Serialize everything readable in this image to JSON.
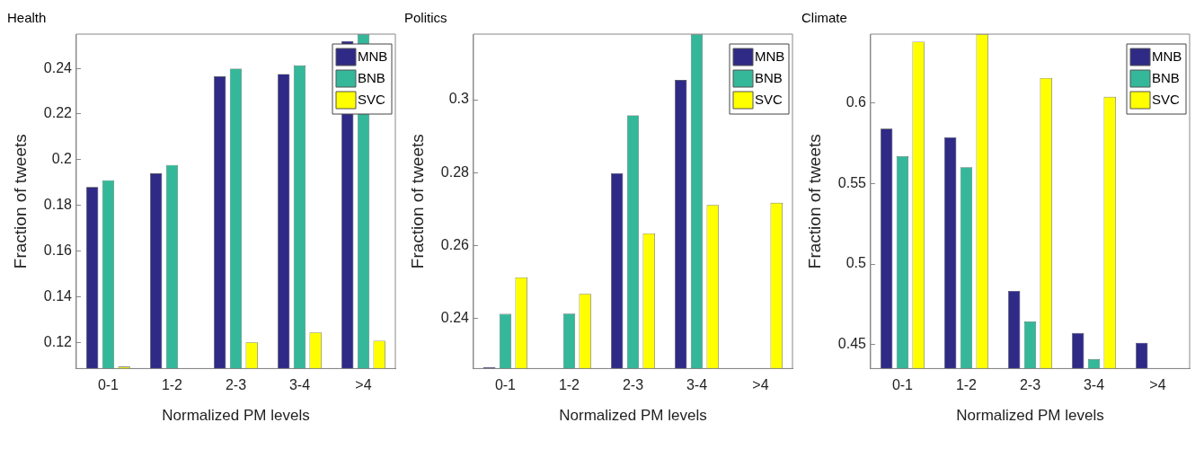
{
  "chart_data": [
    {
      "type": "bar",
      "title": "Health",
      "xlabel": "Normalized PM levels",
      "ylabel": "Fraction of tweets",
      "categories": [
        "0-1",
        "1-2",
        "2-3",
        "3-4",
        ">4"
      ],
      "series": [
        {
          "name": "MNB",
          "color": "#2e2a86",
          "values": [
            0.188,
            0.194,
            0.2365,
            0.2375,
            0.252
          ]
        },
        {
          "name": "BNB",
          "color": "#35b79a",
          "values": [
            0.191,
            0.1977,
            0.2399,
            0.2413,
            0.255
          ]
        },
        {
          "name": "SVC",
          "color": "#ffff00",
          "values": [
            0.1093,
            null,
            0.12,
            0.1243,
            0.1207
          ]
        }
      ],
      "ylim": [
        0.1085,
        0.255
      ],
      "yticks": [
        0.12,
        0.14,
        0.16,
        0.18,
        0.2,
        0.22,
        0.24
      ],
      "grid": false,
      "legend": "top right"
    },
    {
      "type": "bar",
      "title": "Politics",
      "xlabel": "Normalized PM levels",
      "ylabel": "Fraction of tweets",
      "categories": [
        "0-1",
        "1-2",
        "2-3",
        "3-4",
        ">4"
      ],
      "series": [
        {
          "name": "MNB",
          "color": "#2e2a86",
          "values": [
            0.2266,
            null,
            0.2798,
            0.3054,
            null
          ]
        },
        {
          "name": "BNB",
          "color": "#35b79a",
          "values": [
            0.2412,
            0.2413,
            0.2957,
            0.318,
            null
          ]
        },
        {
          "name": "SVC",
          "color": "#ffff00",
          "values": [
            0.2512,
            0.2467,
            0.2633,
            0.2711,
            0.2717
          ]
        }
      ],
      "ylim": [
        0.2262,
        0.318
      ],
      "yticks": [
        0.24,
        0.26,
        0.28,
        0.3
      ],
      "grid": false,
      "legend": "top right"
    },
    {
      "type": "bar",
      "title": "Climate",
      "xlabel": "Normalized PM levels",
      "ylabel": "Fraction of tweets",
      "categories": [
        "0-1",
        "1-2",
        "2-3",
        "3-4",
        ">4"
      ],
      "series": [
        {
          "name": "MNB",
          "color": "#2e2a86",
          "values": [
            0.5842,
            0.5788,
            0.4833,
            0.4571,
            0.451
          ]
        },
        {
          "name": "BNB",
          "color": "#35b79a",
          "values": [
            0.5671,
            0.5602,
            0.4643,
            0.4409,
            null
          ]
        },
        {
          "name": "SVC",
          "color": "#ffff00",
          "values": [
            0.6383,
            0.643,
            0.6157,
            0.604,
            null
          ]
        }
      ],
      "ylim": [
        0.435,
        0.643
      ],
      "yticks": [
        0.45,
        0.5,
        0.55,
        0.6
      ],
      "grid": false,
      "legend": "top right"
    }
  ]
}
